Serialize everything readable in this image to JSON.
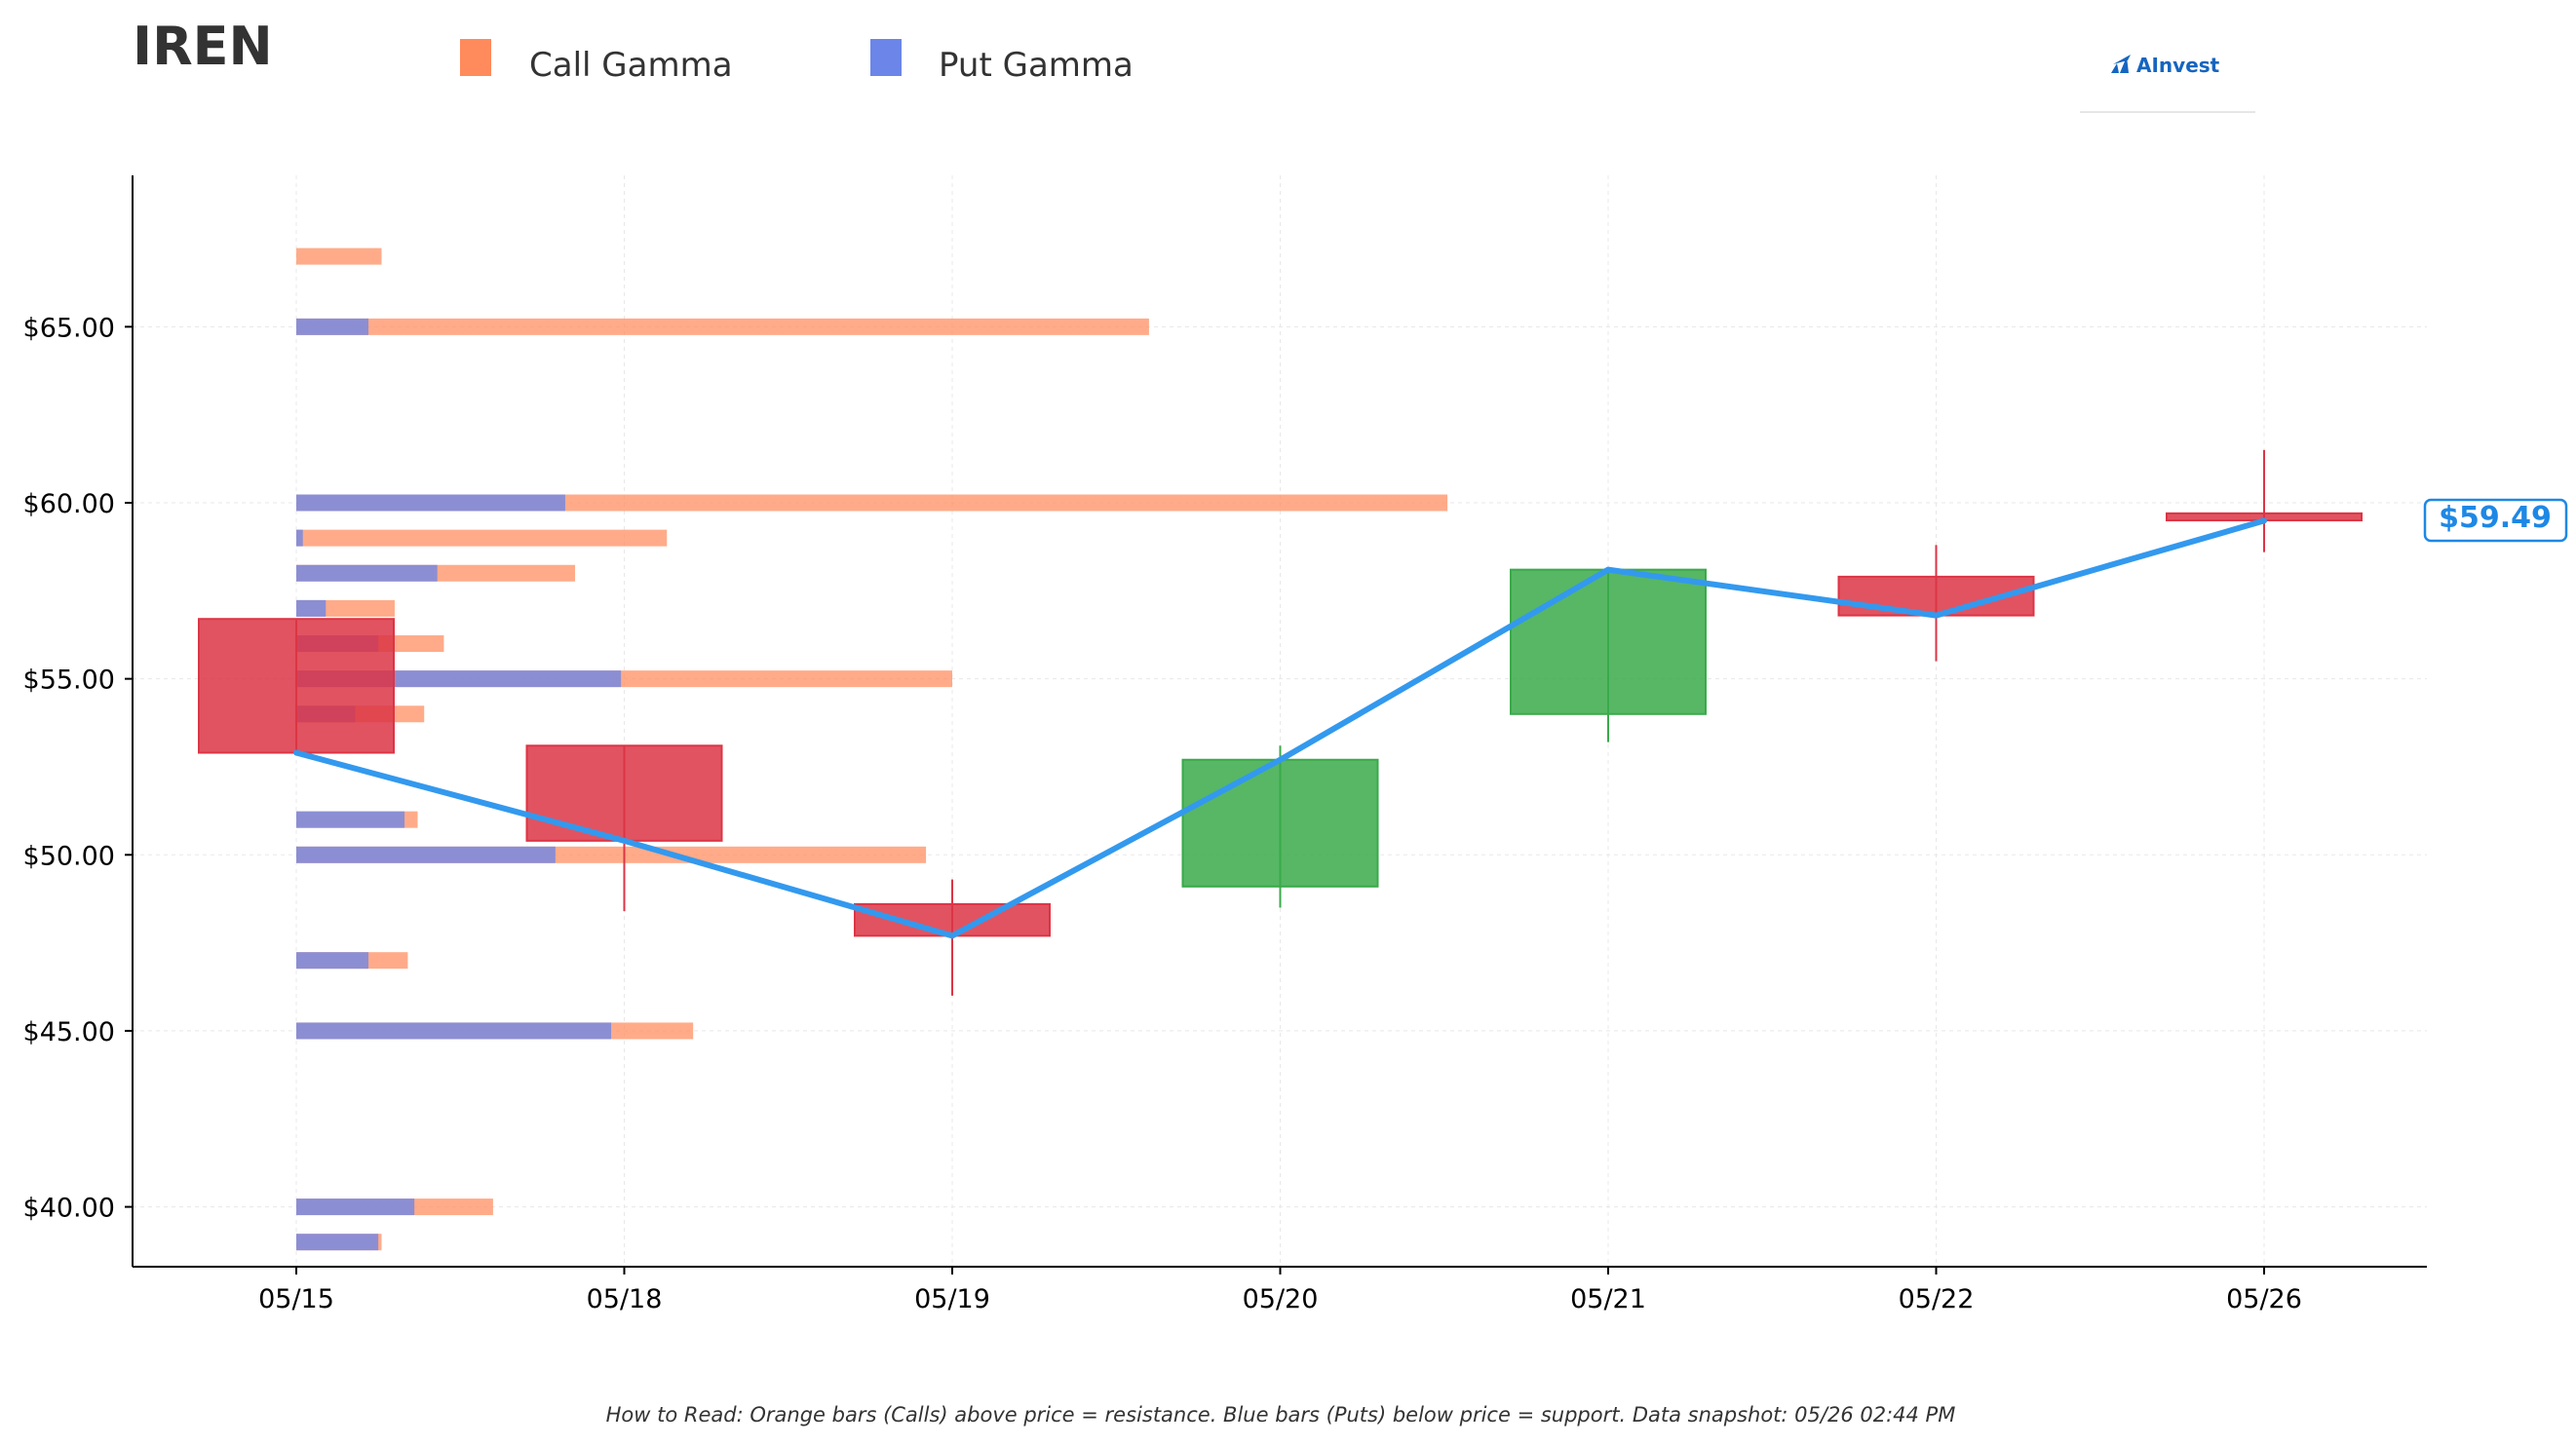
{
  "ticker": "IREN",
  "brand": {
    "name": "AInvest"
  },
  "legend": [
    {
      "label": "Call Gamma",
      "color": "#ff8a5c"
    },
    {
      "label": "Put Gamma",
      "color": "#6b85e8"
    }
  ],
  "footnote": "How to Read: Orange bars (Calls) above price = resistance. Blue bars (Puts) below price = support. Data snapshot: 05/26 02:44 PM",
  "colors": {
    "up": "#3aaa4a",
    "down": "#dc3545",
    "line": "#3399ee",
    "call": "#ff8a5c",
    "put": "#6b85e8"
  },
  "chart_data": {
    "type": "candlestick",
    "title": "IREN",
    "categories": [
      "05/15",
      "05/18",
      "05/19",
      "05/20",
      "05/21",
      "05/22",
      "05/26"
    ],
    "ohlc": [
      {
        "date": "05/15",
        "open": 56.7,
        "high": 56.7,
        "low": 52.9,
        "close": 52.9
      },
      {
        "date": "05/18",
        "open": 53.1,
        "high": 53.1,
        "low": 48.4,
        "close": 50.4
      },
      {
        "date": "05/19",
        "open": 48.6,
        "high": 49.3,
        "low": 46.0,
        "close": 47.7
      },
      {
        "date": "05/20",
        "open": 49.1,
        "high": 53.1,
        "low": 48.5,
        "close": 52.7
      },
      {
        "date": "05/21",
        "open": 54.0,
        "high": 58.1,
        "low": 53.2,
        "close": 58.1
      },
      {
        "date": "05/22",
        "open": 57.9,
        "high": 58.8,
        "low": 55.5,
        "close": 56.8
      },
      {
        "date": "05/26",
        "open": 59.7,
        "high": 61.5,
        "low": 58.6,
        "close": 59.5
      }
    ],
    "price_line": [
      52.9,
      50.4,
      47.7,
      52.7,
      58.1,
      56.8,
      59.49
    ],
    "current_price_label": "$59.49",
    "gamma_bars": [
      {
        "strike": 67,
        "put": 0,
        "total": 0.26
      },
      {
        "strike": 65,
        "put": 0.22,
        "total": 2.6
      },
      {
        "strike": 60,
        "put": 0.82,
        "total": 3.51
      },
      {
        "strike": 59,
        "put": 0.02,
        "total": 1.13
      },
      {
        "strike": 58,
        "put": 0.43,
        "total": 0.85
      },
      {
        "strike": 57,
        "put": 0.09,
        "total": 0.3
      },
      {
        "strike": 56,
        "put": 0.25,
        "total": 0.45
      },
      {
        "strike": 55,
        "put": 0.99,
        "total": 2.0
      },
      {
        "strike": 54,
        "put": 0.18,
        "total": 0.39
      },
      {
        "strike": 51,
        "put": 0.33,
        "total": 0.37
      },
      {
        "strike": 50,
        "put": 0.79,
        "total": 1.92
      },
      {
        "strike": 47,
        "put": 0.22,
        "total": 0.34
      },
      {
        "strike": 45,
        "put": 0.96,
        "total": 1.21
      },
      {
        "strike": 40,
        "put": 0.36,
        "total": 0.6
      },
      {
        "strike": 39,
        "put": 0.25,
        "total": 0.26
      }
    ],
    "y_ticks": [
      40,
      45,
      50,
      55,
      60,
      65
    ],
    "y_tick_labels": [
      "$40.00",
      "$45.00",
      "$50.00",
      "$55.00",
      "$60.00",
      "$65.00"
    ],
    "ylim": [
      38.3,
      69.3
    ],
    "grid": true
  }
}
